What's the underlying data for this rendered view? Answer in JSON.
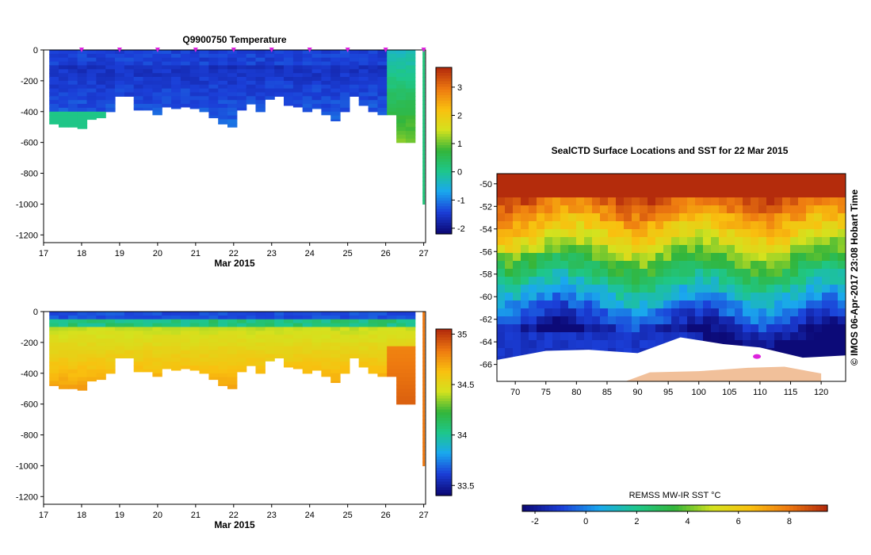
{
  "chart_data": [
    {
      "type": "heatmap",
      "title": "Q9900750  Temperature",
      "xlabel": "Mar 2015",
      "ylabel": "",
      "x_ticks": [
        "17",
        "18",
        "19",
        "20",
        "21",
        "22",
        "23",
        "24",
        "25",
        "26",
        "27"
      ],
      "y_ticks": [
        "0",
        "-200",
        "-400",
        "-600",
        "-800",
        "-1000",
        "-1200"
      ],
      "xlim": [
        17,
        27.05
      ],
      "ylim": [
        -1250,
        0
      ],
      "profile_dates": [
        18,
        19,
        20,
        21,
        22,
        23,
        24,
        25,
        26,
        27
      ],
      "variable": "temperature",
      "colorbar": {
        "ticks": [
          "3",
          "2",
          "1",
          "0",
          "-1",
          "-2"
        ],
        "range": [
          -2.2,
          3.7
        ]
      }
    },
    {
      "type": "heatmap",
      "title": "",
      "xlabel": "Mar 2015",
      "ylabel": "",
      "x_ticks": [
        "17",
        "18",
        "19",
        "20",
        "21",
        "22",
        "23",
        "24",
        "25",
        "26",
        "27"
      ],
      "y_ticks": [
        "0",
        "-200",
        "-400",
        "-600",
        "-800",
        "-1000",
        "-1200"
      ],
      "xlim": [
        17,
        27.05
      ],
      "ylim": [
        -1250,
        0
      ],
      "variable": "salinity",
      "colorbar": {
        "ticks": [
          "35",
          "34.5",
          "34",
          "33.5"
        ],
        "range": [
          33.4,
          35.05
        ]
      }
    },
    {
      "type": "heatmap",
      "title": "SealCTD Surface Locations and SST for 22 Mar 2015",
      "x_ticks": [
        "70",
        "75",
        "80",
        "85",
        "90",
        "95",
        "100",
        "105",
        "110",
        "115",
        "120"
      ],
      "y_ticks": [
        "-50",
        "-52",
        "-54",
        "-56",
        "-58",
        "-60",
        "-62",
        "-64",
        "-66"
      ],
      "xlim": [
        67,
        124
      ],
      "ylim": [
        -67.5,
        -49.1
      ],
      "side_label": "© IMOS 06-Apr-2017 23:08 Hobart Time",
      "colorbar": {
        "label": "REMSS MW-IR SST °C",
        "ticks": [
          "-2",
          "0",
          "2",
          "4",
          "6",
          "8"
        ],
        "range": [
          -2.5,
          9.5
        ]
      }
    }
  ],
  "colors": {
    "scale": [
      "#0c0a78",
      "#1b3fd8",
      "#1aa8ee",
      "#1ec78a",
      "#33b53a",
      "#d4e21e",
      "#f9c00f",
      "#ee7a10",
      "#b42c0c"
    ],
    "profile_marker": "#dd22dd",
    "land": "#f1c09a",
    "ice": "#ffffff"
  }
}
